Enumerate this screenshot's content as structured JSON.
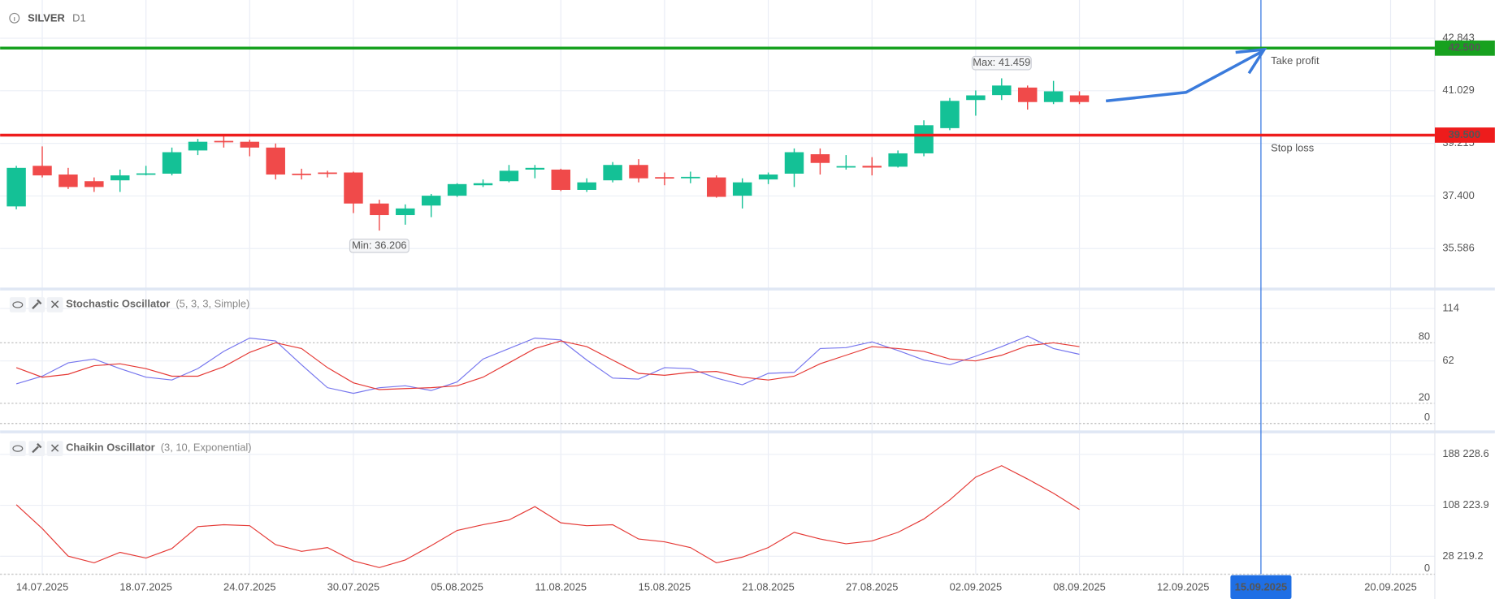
{
  "chart_data": [
    {
      "type": "candlestick",
      "title": "SILVER",
      "timeframe": "D1",
      "categories": [
        null,
        "14.07.2025",
        null,
        null,
        null,
        "18.07.2025",
        null,
        null,
        null,
        "24.07.2025",
        null,
        null,
        null,
        "30.07.2025",
        null,
        null,
        null,
        "05.08.2025",
        null,
        null,
        null,
        "11.08.2025",
        null,
        null,
        null,
        "15.08.2025",
        null,
        null,
        null,
        "21.08.2025",
        null,
        null,
        null,
        "27.08.2025",
        null,
        null,
        null,
        "02.09.2025",
        null,
        null,
        null,
        "08.09.2025",
        null,
        null,
        null,
        "12.09.2025",
        null,
        null,
        "15.09.2025",
        null,
        null,
        null,
        null,
        "20.09.2025"
      ],
      "crosshair": "15.09.2025",
      "open": [
        37.04,
        38.44,
        38.14,
        37.91,
        37.94,
        38.17,
        38.17,
        38.97,
        39.3,
        39.27,
        39.07,
        38.17,
        38.21,
        38.21,
        37.14,
        36.74,
        37.07,
        37.41,
        37.77,
        37.91,
        38.31,
        38.31,
        37.61,
        37.94,
        38.47,
        38.05,
        38.03,
        38.04,
        37.41,
        37.97,
        38.17,
        38.84,
        38.41,
        38.44,
        38.41,
        38.87,
        39.74,
        40.71,
        40.88,
        41.14,
        40.64,
        40.87,
        null,
        null,
        null,
        null,
        null,
        null,
        null,
        null,
        null,
        null,
        null,
        null
      ],
      "high": [
        38.44,
        39.11,
        38.37,
        38.04,
        38.31,
        38.44,
        39.07,
        39.37,
        39.47,
        39.34,
        39.21,
        38.34,
        38.27,
        38.24,
        37.27,
        37.11,
        37.47,
        37.84,
        37.97,
        38.47,
        38.47,
        38.34,
        38.01,
        38.57,
        38.67,
        38.21,
        38.24,
        38.11,
        38.01,
        38.21,
        39.04,
        39.04,
        38.81,
        38.74,
        38.97,
        40.01,
        40.78,
        41.04,
        41.459,
        41.21,
        41.37,
        41.01,
        null,
        null,
        null,
        null,
        null,
        null,
        null,
        null,
        null,
        null,
        null,
        null
      ],
      "low": [
        36.94,
        38.04,
        37.64,
        37.54,
        37.54,
        38.11,
        38.11,
        38.81,
        39.07,
        38.77,
        37.97,
        37.97,
        38.04,
        36.81,
        36.206,
        36.41,
        36.67,
        37.37,
        37.71,
        37.87,
        38.01,
        37.57,
        37.54,
        37.87,
        37.87,
        37.77,
        37.84,
        37.34,
        36.97,
        37.81,
        37.71,
        38.14,
        38.31,
        38.11,
        38.38,
        38.77,
        39.67,
        40.17,
        40.71,
        40.38,
        40.57,
        40.57,
        null,
        null,
        null,
        null,
        null,
        null,
        null,
        null,
        null,
        null,
        null,
        null
      ],
      "close": [
        38.37,
        38.11,
        37.71,
        37.71,
        38.11,
        38.18,
        38.91,
        39.27,
        39.28,
        39.07,
        38.14,
        38.14,
        38.19,
        37.14,
        36.74,
        36.97,
        37.41,
        37.81,
        37.84,
        38.27,
        38.37,
        37.61,
        37.87,
        38.47,
        38.01,
        38.03,
        38.06,
        37.37,
        37.87,
        38.14,
        38.91,
        38.54,
        38.43,
        38.38,
        38.87,
        39.84,
        40.68,
        40.87,
        41.21,
        40.64,
        41.01,
        40.64,
        null,
        null,
        null,
        null,
        null,
        null,
        null,
        null,
        null,
        null,
        null,
        null
      ],
      "up_color": "#14c196",
      "down_color": "#f04a4a",
      "ylim": [
        34.24,
        44.16
      ],
      "yticks": [
        42.843,
        41.029,
        39.215,
        {
          "value": 37.4,
          "label": "37.400"
        },
        35.586
      ],
      "levels": [
        {
          "name": "Take profit",
          "value": 42.5,
          "label": "42.500",
          "color": "#17a11f"
        },
        {
          "name": "Stop loss",
          "value": 39.5,
          "label": "39.500",
          "color": "#ee1c1c"
        }
      ],
      "annotations": [
        {
          "label": "Max: 41.459",
          "value": 41.459,
          "index": 38
        },
        {
          "label": "Min: 36.206",
          "value": 36.206,
          "index": 14
        }
      ],
      "grid": true
    },
    {
      "type": "line",
      "title": "Stochastic Oscillator",
      "subtitle": "(5, 3, 3, Simple)",
      "series": [
        {
          "color": "#7676ee",
          "values": [
            39.3,
            46.9,
            60.1,
            63.9,
            54.4,
            45.9,
            43.1,
            54.4,
            71.5,
            84.7,
            81.8,
            58.2,
            35.5,
            29.9,
            35.5,
            37.4,
            32.7,
            41.2,
            63.9,
            74.3,
            84.7,
            82.8,
            62.9,
            45.0,
            44.0,
            55.4,
            54.4,
            45.0,
            38.4,
            49.7,
            50.7,
            74.3,
            75.2,
            80.9,
            72.4,
            62.9,
            58.2,
            66.7,
            76.2,
            86.6,
            74.3,
            68.6,
            null,
            null,
            null,
            null,
            null,
            null,
            null,
            null,
            null,
            null,
            null,
            null
          ]
        },
        {
          "color": "#e53935",
          "values": [
            55.4,
            45.9,
            48.8,
            57.3,
            59.2,
            54.4,
            46.9,
            46.9,
            56.3,
            70.5,
            80.0,
            74.3,
            55.4,
            40.3,
            33.6,
            34.6,
            35.5,
            37.4,
            45.9,
            60.1,
            74.3,
            81.8,
            76.2,
            62.9,
            49.7,
            47.8,
            50.7,
            51.6,
            45.9,
            43.1,
            46.9,
            59.2,
            67.7,
            76.2,
            74.3,
            71.5,
            63.9,
            62.0,
            67.7,
            77.1,
            80.0,
            76.2,
            null,
            null,
            null,
            null,
            null,
            null,
            null,
            null,
            null,
            null,
            null,
            null
          ]
        }
      ],
      "ylim": [
        -5,
        130
      ],
      "yticks": [
        114,
        62
      ],
      "levels": [
        80,
        20,
        0
      ],
      "grid": true
    },
    {
      "type": "line",
      "title": "Chaikin Oscillator",
      "subtitle": "(3, 10, Exponential)",
      "series": [
        {
          "color": "#e53935",
          "values": [
            109164,
            71779,
            28413,
            17945,
            34394,
            25422,
            40376,
            74770,
            77761,
            76265,
            46357,
            35890,
            41871,
            20936,
            10468,
            22431,
            44862,
            68788,
            77761,
            85238,
            106173,
            80752,
            76265,
            77761,
            55330,
            50844,
            41871,
            17945,
            26917,
            41871,
            65798,
            55330,
            47853,
            52339,
            65798,
            86733,
            116641,
            152531,
            170476,
            149540,
            127109,
            101687,
            null,
            null,
            null,
            null,
            null,
            null,
            null,
            null,
            null,
            null,
            null,
            null
          ]
        }
      ],
      "ylim": [
        0,
        218330
      ],
      "yticks": [
        {
          "value": 188228.6,
          "label": "188 228.6"
        },
        {
          "value": 108223.9,
          "label": "108 223.9"
        },
        {
          "value": 28219.2,
          "label": "28 219.2"
        }
      ],
      "levels": [
        0
      ],
      "grid": true
    }
  ]
}
